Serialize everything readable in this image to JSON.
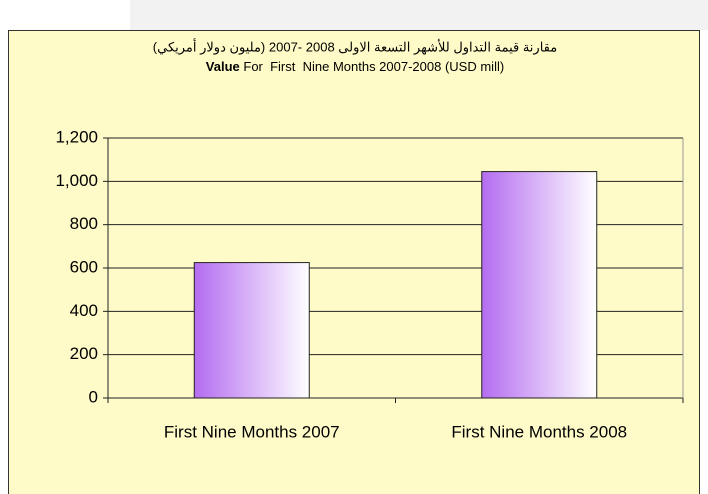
{
  "chart_data": {
    "type": "bar",
    "title": "مقارنة قيمة التداول للأشهر التسعة الاولى 2008 -2007  (مليون  دولار أمريكي)",
    "subtitle_bold": "Value",
    "subtitle": " For  First  Nine Months 2007-2008 (USD mill)",
    "categories": [
      "First Nine Months 2007",
      "First Nine Months 2008"
    ],
    "values": [
      625,
      1045
    ],
    "color": "#b46cf0",
    "ylim": [
      0,
      1200
    ],
    "yticks": [
      0,
      200,
      400,
      600,
      800,
      {
        "value": 1000,
        "label": "1,000"
      },
      {
        "value": 1200,
        "label": "1,200"
      }
    ],
    "grid": true
  }
}
